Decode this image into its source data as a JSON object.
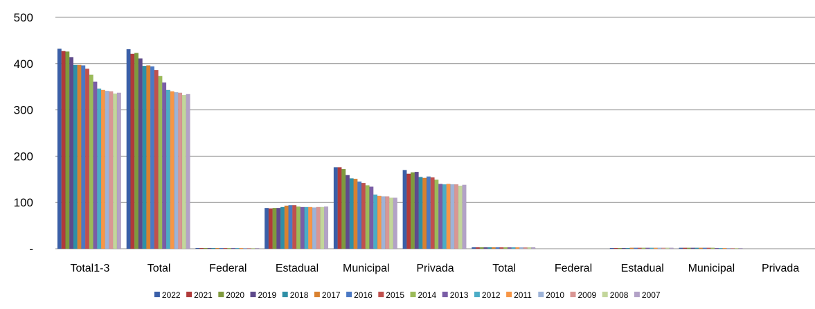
{
  "chart_data": {
    "type": "bar",
    "title": "",
    "xlabel": "",
    "ylabel": "",
    "ylim": [
      0,
      500
    ],
    "yticks": [
      0,
      100,
      200,
      300,
      400,
      500
    ],
    "ytick_labels": [
      "-",
      "100",
      "200",
      "300",
      "400",
      "500"
    ],
    "grid": true,
    "legend_position": "bottom",
    "categories": [
      "Total1-3",
      "Total",
      "Federal",
      "Estadual",
      "Municipal",
      "Privada",
      "Total",
      "Federal",
      "Estadual",
      "Municipal",
      "Privada"
    ],
    "series": [
      {
        "name": "2022",
        "color": "#3A5FA8",
        "values": [
          432,
          431,
          1,
          88,
          176,
          170,
          3,
          0,
          1,
          2,
          0
        ]
      },
      {
        "name": "2021",
        "color": "#B03A3A",
        "values": [
          427,
          421,
          1,
          87,
          176,
          162,
          3,
          0,
          1,
          2,
          0
        ]
      },
      {
        "name": "2020",
        "color": "#7F9A3D",
        "values": [
          426,
          423,
          1,
          88,
          172,
          165,
          3,
          0,
          1,
          2,
          0
        ]
      },
      {
        "name": "2019",
        "color": "#5E4A8C",
        "values": [
          414,
          411,
          1,
          88,
          159,
          166,
          3,
          0,
          1,
          2,
          0
        ]
      },
      {
        "name": "2018",
        "color": "#2F8FA6",
        "values": [
          397,
          395,
          1,
          90,
          152,
          155,
          3,
          0,
          1,
          2,
          0
        ]
      },
      {
        "name": "2017",
        "color": "#D9812F",
        "values": [
          397,
          396,
          1,
          93,
          151,
          153,
          3,
          0,
          2,
          2,
          0
        ]
      },
      {
        "name": "2016",
        "color": "#4B79C4",
        "values": [
          396,
          394,
          1,
          94,
          145,
          156,
          3,
          0,
          2,
          2,
          0
        ]
      },
      {
        "name": "2015",
        "color": "#C0504D",
        "values": [
          389,
          386,
          1,
          94,
          142,
          154,
          3,
          0,
          2,
          2,
          0
        ]
      },
      {
        "name": "2014",
        "color": "#9BBB59",
        "values": [
          376,
          373,
          1,
          91,
          137,
          149,
          3,
          0,
          2,
          2,
          0
        ]
      },
      {
        "name": "2013",
        "color": "#7A5DA6",
        "values": [
          361,
          359,
          1,
          90,
          134,
          140,
          3,
          0,
          2,
          1,
          0
        ]
      },
      {
        "name": "2012",
        "color": "#4BACC6",
        "values": [
          346,
          343,
          1,
          90,
          117,
          139,
          3,
          0,
          2,
          1,
          0
        ]
      },
      {
        "name": "2011",
        "color": "#F79646",
        "values": [
          343,
          340,
          1,
          90,
          114,
          140,
          3,
          0,
          2,
          1,
          0
        ]
      },
      {
        "name": "2010",
        "color": "#9DB3D8",
        "values": [
          341,
          338,
          1,
          89,
          113,
          139,
          3,
          0,
          2,
          1,
          0
        ]
      },
      {
        "name": "2009",
        "color": "#D99694",
        "values": [
          340,
          337,
          1,
          90,
          113,
          139,
          3,
          0,
          2,
          1,
          0
        ]
      },
      {
        "name": "2008",
        "color": "#C3D69B",
        "values": [
          335,
          332,
          1,
          90,
          110,
          136,
          3,
          0,
          2,
          1,
          0
        ]
      },
      {
        "name": "2007",
        "color": "#B3A2C7",
        "values": [
          337,
          334,
          1,
          91,
          110,
          138,
          3,
          0,
          2,
          1,
          0
        ]
      }
    ]
  }
}
